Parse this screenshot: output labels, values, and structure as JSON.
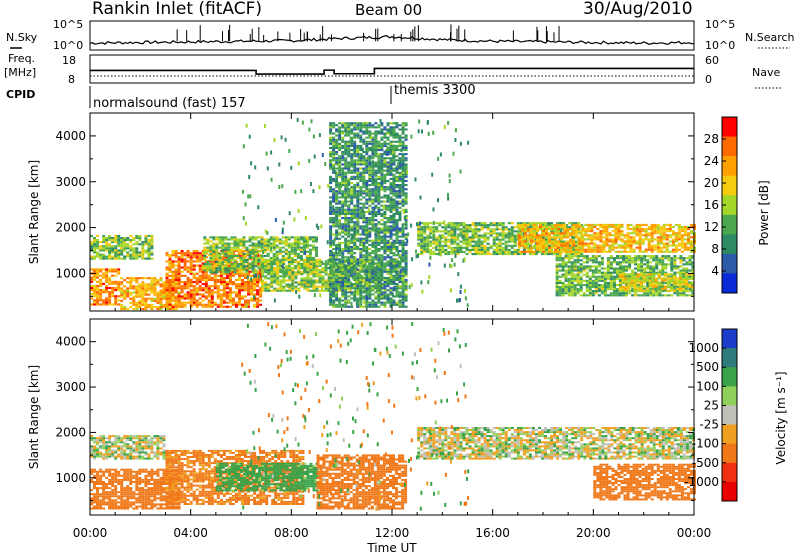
{
  "header": {
    "title": "Rankin Inlet (fitACF)",
    "beam": "Beam 00",
    "date": "30/Aug/2010"
  },
  "noise_panel": {
    "left_label": "N.Sky",
    "right_label": "N.Search",
    "left_ticks": [
      "10^5",
      "10^0"
    ],
    "right_ticks": [
      "10^5",
      "10^0"
    ]
  },
  "freq_panel": {
    "left_label_1": "Freq.",
    "left_label_2": "[MHz]",
    "right_label": "Nave",
    "left_ticks": [
      "18",
      "8"
    ],
    "right_ticks": [
      "60",
      "0"
    ]
  },
  "cpid_panel": {
    "label": "CPID",
    "modes": [
      {
        "name": "normalsound (fast) 157",
        "start_hour": 0
      },
      {
        "name": "themis 3300",
        "start_hour": 12
      }
    ]
  },
  "x_axis": {
    "label": "Time UT",
    "ticks": [
      "00:00",
      "04:00",
      "08:00",
      "12:00",
      "16:00",
      "20:00",
      "00:00"
    ]
  },
  "power_colorbar": {
    "label": "Power [dB]",
    "ticks": [
      "28",
      "24",
      "20",
      "16",
      "12",
      "8",
      "4"
    ],
    "colors": [
      "#ff0000",
      "#ff6a00",
      "#ff9f00",
      "#f5cc10",
      "#a5d62a",
      "#4ca84e",
      "#2e8a62",
      "#2a5aa8",
      "#0a2ad8"
    ]
  },
  "velocity_colorbar": {
    "label": "Velocity [m s⁻¹]",
    "ticks": [
      "1000",
      "500",
      "100",
      "25",
      "-25",
      "-100",
      "-500",
      "-1000"
    ],
    "colors": [
      "#1a3cc8",
      "#2f7a7a",
      "#3aa34a",
      "#8fd05a",
      "#c0c0b8",
      "#f0a020",
      "#f07818",
      "#f03010",
      "#e80000"
    ]
  },
  "chart_data": [
    {
      "type": "line",
      "title": "N.Sky / N.Search",
      "x": [
        "00:00",
        "02:00",
        "04:00",
        "06:00",
        "08:00",
        "10:00",
        "12:00",
        "14:00",
        "16:00",
        "18:00",
        "20:00",
        "22:00",
        "24:00"
      ],
      "ylim_log10": [
        0,
        5
      ],
      "series": [
        {
          "name": "N.Sky",
          "values": [
            1.2,
            1.3,
            1.4,
            1.5,
            1.6,
            2.0,
            2.3,
            1.8,
            1.5,
            1.4,
            1.3,
            1.2,
            1.3
          ]
        },
        {
          "name": "N.Search",
          "values": [
            1.1,
            1.2,
            1.3,
            1.4,
            1.5,
            1.8,
            2.0,
            1.6,
            1.4,
            1.3,
            1.2,
            1.1,
            1.2
          ]
        }
      ]
    },
    {
      "type": "line",
      "title": "Freq. / Nave",
      "x_hours": [
        0,
        6.6,
        9.3,
        9.7,
        11.3,
        24
      ],
      "ylim": [
        8,
        18
      ],
      "series": [
        {
          "name": "Freq.",
          "values": [
            12.5,
            11.2,
            12.6,
            11.3,
            13.2,
            13.2
          ]
        },
        {
          "name": "Nave",
          "values": [
            15,
            15,
            15,
            15,
            15,
            15
          ]
        }
      ]
    },
    {
      "type": "heatmap",
      "title": "Power [dB]",
      "x_label": "Time UT",
      "y_label": "Slant Range [km]",
      "xlim_hours": [
        0,
        24
      ],
      "ylim_km": [
        180,
        4500
      ],
      "y_ticks": [
        1000,
        2000,
        3000,
        4000
      ],
      "color_ticks": [
        4,
        8,
        12,
        16,
        20,
        24,
        28
      ],
      "clim": [
        0,
        30
      ],
      "bands": [
        {
          "t0": 0.0,
          "t1": 1.2,
          "r0": 300,
          "r1": 1100,
          "p": 22
        },
        {
          "t0": 0.0,
          "t1": 2.5,
          "r0": 1300,
          "r1": 1800,
          "p": 12
        },
        {
          "t0": 1.2,
          "t1": 3.5,
          "r0": 200,
          "r1": 900,
          "p": 20
        },
        {
          "t0": 3.0,
          "t1": 6.8,
          "r0": 250,
          "r1": 1500,
          "p": 23
        },
        {
          "t0": 4.5,
          "t1": 9.0,
          "r0": 1000,
          "r1": 1800,
          "p": 12
        },
        {
          "t0": 6.8,
          "t1": 11.5,
          "r0": 600,
          "r1": 1300,
          "p": 13
        },
        {
          "t0": 9.5,
          "t1": 12.5,
          "r0": 250,
          "r1": 4300,
          "p": 8
        },
        {
          "t0": 13.0,
          "t1": 19.5,
          "r0": 1400,
          "r1": 2100,
          "p": 12
        },
        {
          "t0": 17.0,
          "t1": 24.0,
          "r0": 1450,
          "r1": 2050,
          "p": 19
        },
        {
          "t0": 18.5,
          "t1": 24.0,
          "r0": 500,
          "r1": 1400,
          "p": 11
        },
        {
          "t0": 21.0,
          "t1": 24.0,
          "r0": 600,
          "r1": 1000,
          "p": 16
        }
      ]
    },
    {
      "type": "heatmap",
      "title": "Velocity [m s-1]",
      "x_label": "Time UT",
      "y_label": "Slant Range [km]",
      "xlim_hours": [
        0,
        24
      ],
      "ylim_km": [
        180,
        4500
      ],
      "y_ticks": [
        1000,
        2000,
        3000,
        4000
      ],
      "color_ticks": [
        1000,
        500,
        100,
        25,
        -25,
        -100,
        -500,
        -1000
      ],
      "bands": [
        {
          "t0": 0.0,
          "t1": 3.0,
          "r0": 1400,
          "r1": 1900,
          "v": 0
        },
        {
          "t0": 0.0,
          "t1": 3.5,
          "r0": 300,
          "r1": 1200,
          "v": -200
        },
        {
          "t0": 3.0,
          "t1": 8.5,
          "r0": 400,
          "r1": 1600,
          "v": -150
        },
        {
          "t0": 5.0,
          "t1": 9.0,
          "r0": 700,
          "r1": 1300,
          "v": 150
        },
        {
          "t0": 9.0,
          "t1": 12.5,
          "r0": 300,
          "r1": 1500,
          "v": -250
        },
        {
          "t0": 13.0,
          "t1": 24.0,
          "r0": 1400,
          "r1": 2100,
          "v": 0
        },
        {
          "t0": 20.0,
          "t1": 24.0,
          "r0": 500,
          "r1": 1300,
          "v": -300
        }
      ]
    }
  ]
}
